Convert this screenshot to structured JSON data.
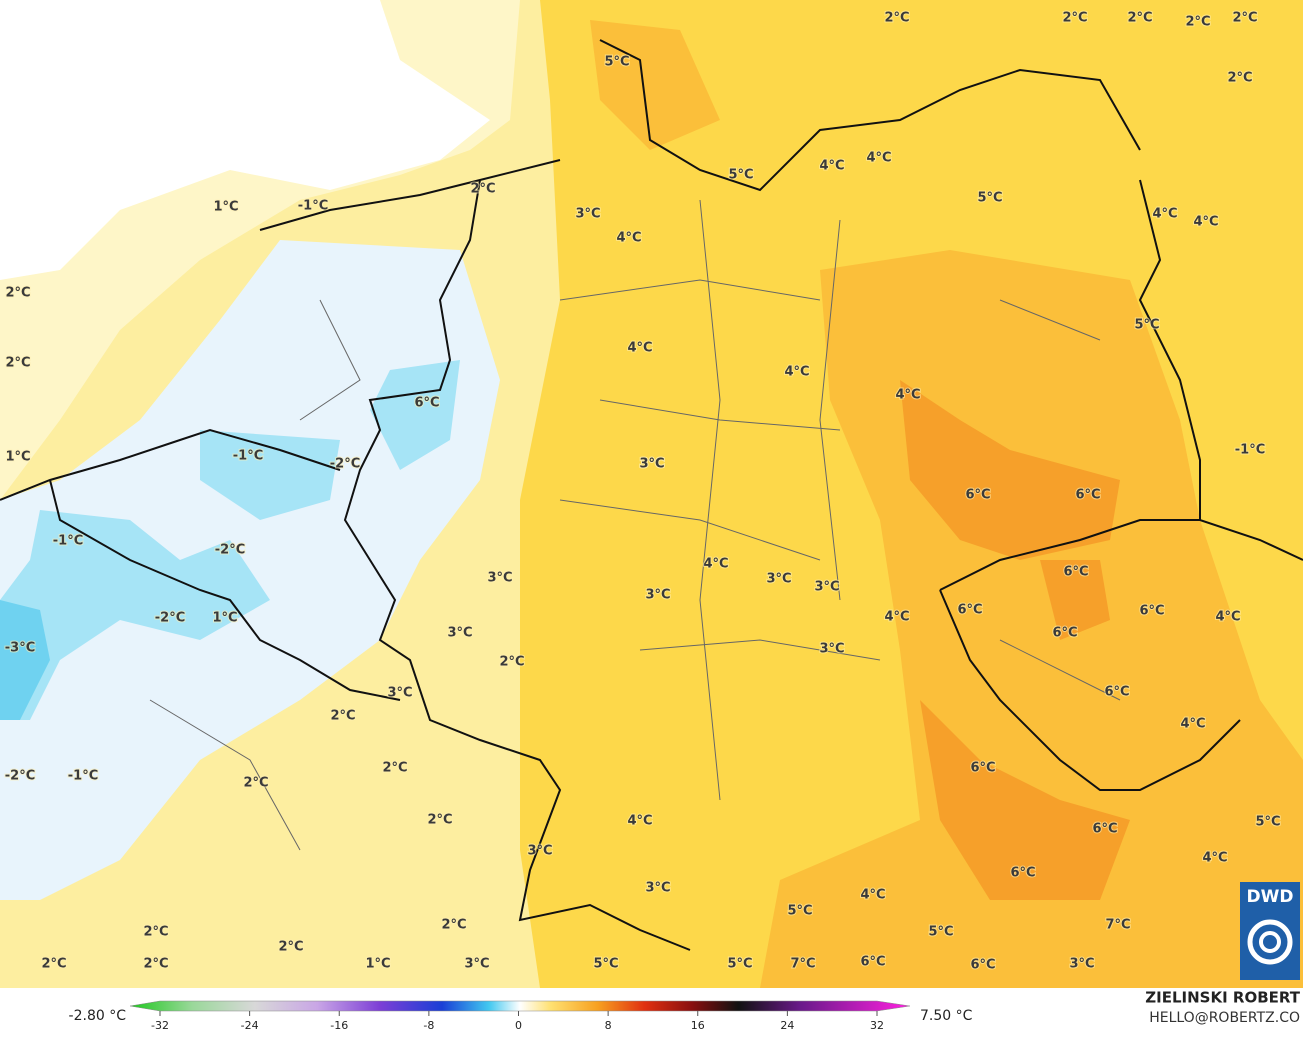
{
  "map": {
    "temperature_labels": [
      "2°C",
      "2°C",
      "2°C",
      "2°C",
      "2°C",
      "2°C",
      "5°C",
      "5°C",
      "4°C",
      "4°C",
      "5°C",
      "4°C",
      "4°C",
      "2°C",
      "3°C",
      "4°C",
      "1°C",
      "-1°C",
      "2°C",
      "2°C",
      "1°C",
      "5°C",
      "4°C",
      "4°C",
      "4°C",
      "6°C",
      "-1°C",
      "3°C",
      "-1°C",
      "-2°C",
      "3°C",
      "6°C",
      "6°C",
      "-1°C",
      "-2°C",
      "4°C",
      "6°C",
      "3°C",
      "3°C",
      "3°C",
      "3°C",
      "6°C",
      "6°C",
      "-2°C",
      "1°C",
      "4°C",
      "4°C",
      "3°C",
      "6°C",
      "-3°C",
      "3°C",
      "2°C",
      "3°C",
      "6°C",
      "2°C",
      "4°C",
      "6°C",
      "2°C",
      "-2°C",
      "-1°C",
      "2°C",
      "2°C",
      "4°C",
      "6°C",
      "5°C",
      "3°C",
      "4°C",
      "6°C",
      "3°C",
      "4°C",
      "2°C",
      "5°C",
      "7°C",
      "5°C",
      "2°C",
      "2°C",
      "2°C",
      "2°C",
      "1°C",
      "3°C",
      "5°C",
      "5°C",
      "7°C",
      "6°C",
      "6°C",
      "3°C"
    ]
  },
  "colorbar": {
    "min_label": "-2.80 °C",
    "max_label": "7.50 °C",
    "lim": [
      -32,
      32
    ],
    "ticks": [
      -32,
      -24,
      -16,
      -8,
      0,
      8,
      16,
      24,
      32
    ]
  },
  "credit": {
    "author": "ZIELINSKI ROBERT",
    "contact": "HELLO@ROBERTZ.CO",
    "logo": "DWD"
  }
}
